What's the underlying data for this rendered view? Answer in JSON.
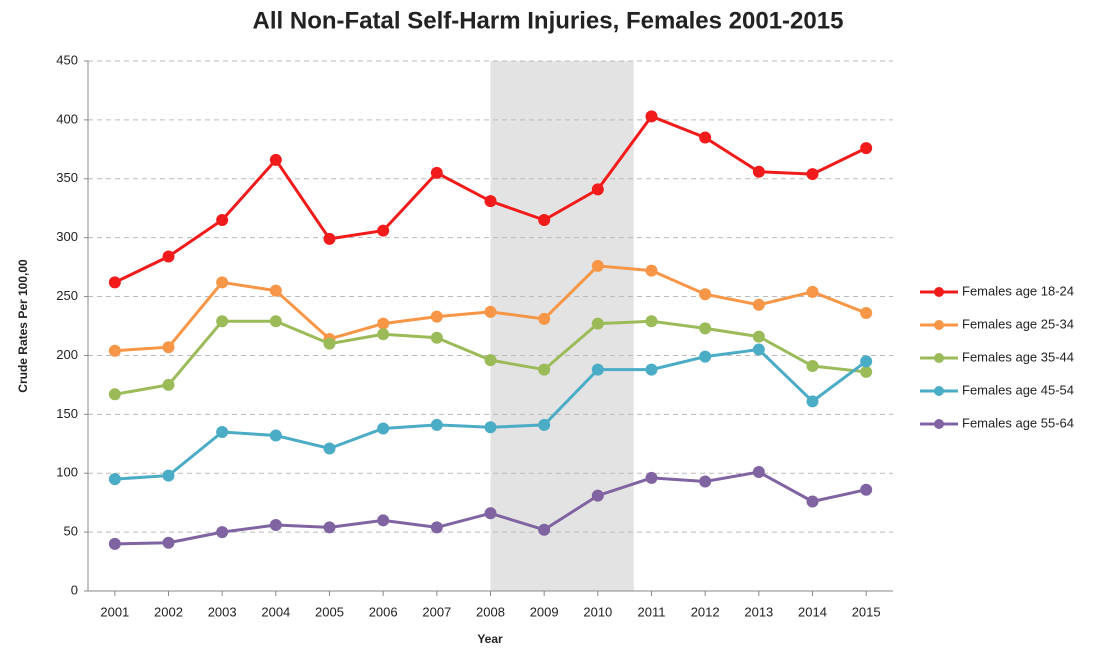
{
  "chart_data": {
    "type": "line",
    "title": "All Non-Fatal Self-Harm Injuries, Females 2001-2015",
    "x_label": "Year",
    "y_label": "Crude Rates Per 100,00",
    "x": [
      2001,
      2002,
      2003,
      2004,
      2005,
      2006,
      2007,
      2008,
      2009,
      2010,
      2011,
      2012,
      2013,
      2014,
      2015
    ],
    "xlim": [
      2000.5,
      2015.5
    ],
    "xticks": [
      2001,
      2002,
      2003,
      2004,
      2005,
      2006,
      2007,
      2008,
      2009,
      2010,
      2011,
      2012,
      2013,
      2014,
      2015
    ],
    "ylim": [
      0,
      450
    ],
    "yticks": [
      0,
      50,
      100,
      150,
      200,
      250,
      300,
      350,
      400,
      450
    ],
    "grid": true,
    "legend": "right",
    "highlight": [
      2008,
      2010.67
    ],
    "highlight_color": "#e3e3e3",
    "series": [
      {
        "name": "Females age 18-24",
        "color": "#f21b1b",
        "values": [
          262,
          284,
          315,
          366,
          299,
          306,
          355,
          331,
          315,
          341,
          403,
          385,
          356,
          354,
          376
        ]
      },
      {
        "name": "Females age 25-34",
        "color": "#f79646",
        "values": [
          204,
          207,
          262,
          255,
          214,
          227,
          233,
          237,
          231,
          276,
          272,
          252,
          243,
          254,
          236
        ]
      },
      {
        "name": "Females age 35-44",
        "color": "#9bbb59",
        "values": [
          167,
          175,
          229,
          229,
          210,
          218,
          215,
          196,
          188,
          227,
          229,
          223,
          216,
          191,
          186
        ]
      },
      {
        "name": "Females age 45-54",
        "color": "#4bacc6",
        "values": [
          95,
          98,
          135,
          132,
          121,
          138,
          141,
          139,
          141,
          188,
          188,
          199,
          205,
          161,
          195
        ]
      },
      {
        "name": "Females age 55-64",
        "color": "#8064a2",
        "values": [
          40,
          41,
          50,
          56,
          54,
          60,
          54,
          66,
          52,
          81,
          96,
          93,
          101,
          76,
          86
        ]
      }
    ]
  }
}
